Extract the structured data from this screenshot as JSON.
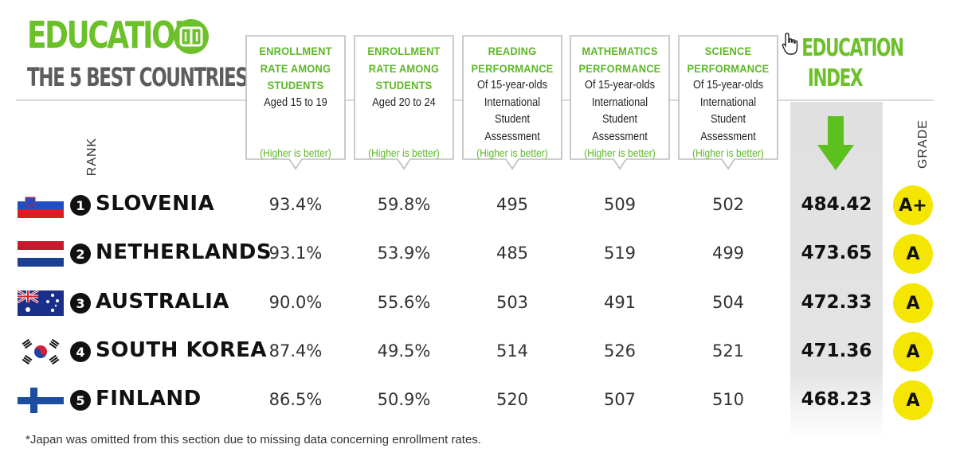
{
  "header": {
    "title": "EDUCATION",
    "subtitle": "THE 5 BEST COUNTRIES*",
    "index_title_line1": "EDUCATION",
    "index_title_line2": "INDEX",
    "rank_label": "RANK",
    "grade_label": "GRADE"
  },
  "colors": {
    "accent_green": "#6cc02a",
    "grade_yellow": "#f4e600",
    "index_column_bg": "#e2e2e2"
  },
  "icons": {
    "badge": "book-icon",
    "cursor": "hand-pointer-icon",
    "arrow": "down-arrow-icon"
  },
  "chart_data": {
    "type": "table",
    "title": "EDUCATION",
    "subtitle": "THE 5 BEST COUNTRIES*",
    "columns": [
      {
        "heading": [
          "ENROLLMENT",
          "RATE AMONG",
          "STUDENTS"
        ],
        "sub": [
          "Aged 15 to 19"
        ],
        "note": "(Higher is better)"
      },
      {
        "heading": [
          "ENROLLMENT",
          "RATE AMONG",
          "STUDENTS"
        ],
        "sub": [
          "Aged 20 to 24"
        ],
        "note": "(Higher is better)"
      },
      {
        "heading": [
          "READING",
          "PERFORMANCE"
        ],
        "sub": [
          "Of 15-year-olds",
          "International",
          "Student",
          "Assessment"
        ],
        "note": "(Higher is better)"
      },
      {
        "heading": [
          "MATHEMATICS",
          "PERFORMANCE"
        ],
        "sub": [
          "Of 15-year-olds",
          "International",
          "Student",
          "Assessment"
        ],
        "note": "(Higher is better)"
      },
      {
        "heading": [
          "SCIENCE",
          "PERFORMANCE"
        ],
        "sub": [
          "Of 15-year-olds",
          "International",
          "Student",
          "Assessment"
        ],
        "note": "(Higher is better)"
      }
    ],
    "rows": [
      {
        "rank": "1",
        "country": "SLOVENIA",
        "flag": "slovenia-flag",
        "values": [
          "93.4%",
          "59.8%",
          "495",
          "509",
          "502"
        ],
        "index": "484.42",
        "grade": "A+"
      },
      {
        "rank": "2",
        "country": "NETHERLANDS",
        "flag": "netherlands-flag",
        "values": [
          "93.1%",
          "53.9%",
          "485",
          "519",
          "499"
        ],
        "index": "473.65",
        "grade": "A"
      },
      {
        "rank": "3",
        "country": "AUSTRALIA",
        "flag": "australia-flag",
        "values": [
          "90.0%",
          "55.6%",
          "503",
          "491",
          "504"
        ],
        "index": "472.33",
        "grade": "A"
      },
      {
        "rank": "4",
        "country": "SOUTH KOREA",
        "flag": "south-korea-flag",
        "values": [
          "87.4%",
          "49.5%",
          "514",
          "526",
          "521"
        ],
        "index": "471.36",
        "grade": "A"
      },
      {
        "rank": "5",
        "country": "FINLAND",
        "flag": "finland-flag",
        "values": [
          "86.5%",
          "50.9%",
          "520",
          "507",
          "510"
        ],
        "index": "468.23",
        "grade": "A"
      }
    ]
  },
  "footnote": "*Japan was omitted from this section due to missing data concerning enrollment rates."
}
